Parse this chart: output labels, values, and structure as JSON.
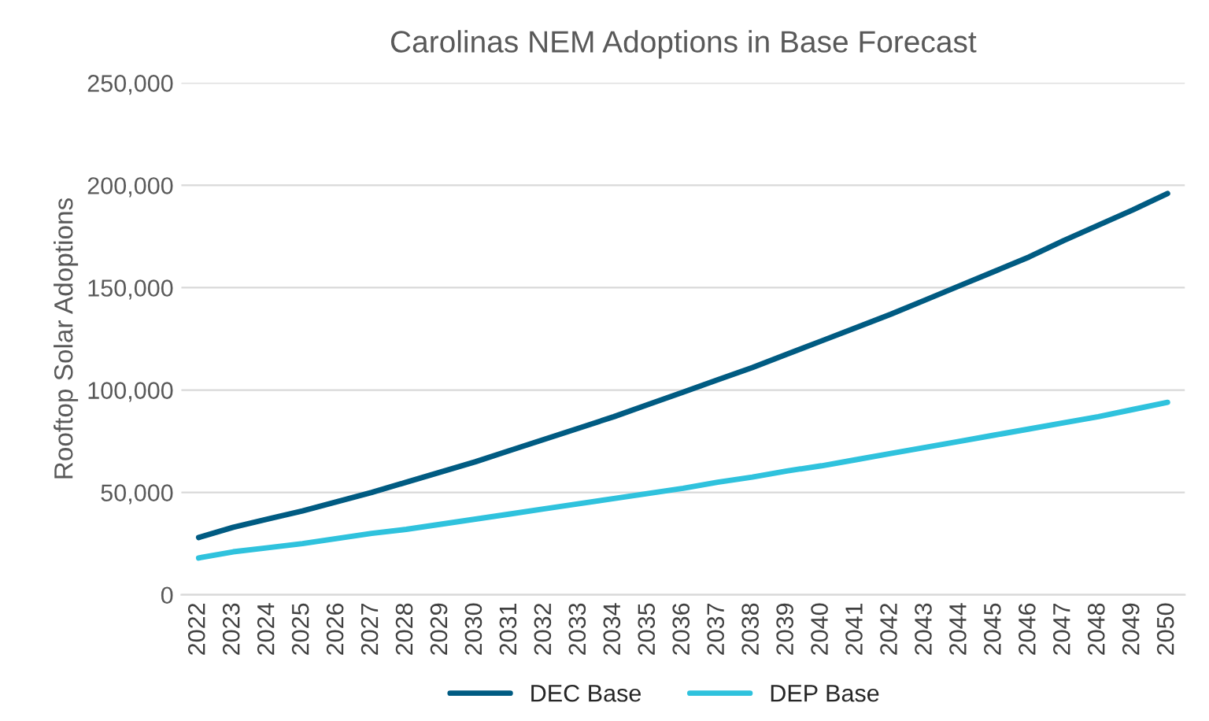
{
  "chart_data": {
    "type": "line",
    "title": "Carolinas NEM Adoptions in Base Forecast",
    "ylabel": "Rooftop Solar Adoptions",
    "categories": [
      "2022",
      "2023",
      "2024",
      "2025",
      "2026",
      "2027",
      "2028",
      "2029",
      "2030",
      "2031",
      "2032",
      "2033",
      "2034",
      "2035",
      "2036",
      "2037",
      "2038",
      "2039",
      "2040",
      "2041",
      "2042",
      "2043",
      "2044",
      "2045",
      "2046",
      "2047",
      "2048",
      "2049",
      "2050"
    ],
    "series": [
      {
        "name": "DEC Base",
        "color": "#005b82",
        "values": [
          28000,
          33000,
          37000,
          41000,
          45500,
          50000,
          55000,
          60000,
          65000,
          70500,
          76000,
          81500,
          87000,
          93000,
          99000,
          105000,
          111000,
          117500,
          124000,
          130500,
          137000,
          144000,
          151000,
          158000,
          165000,
          173000,
          180500,
          188000,
          196000
        ]
      },
      {
        "name": "DEP Base",
        "color": "#2fc2dd",
        "values": [
          18000,
          21000,
          23000,
          25000,
          27500,
          30000,
          32000,
          34500,
          37000,
          39500,
          42000,
          44500,
          47000,
          49500,
          52000,
          55000,
          57500,
          60500,
          63000,
          66000,
          69000,
          72000,
          75000,
          78000,
          81000,
          84000,
          87000,
          90500,
          94000
        ]
      }
    ],
    "ylim": [
      0,
      250000
    ],
    "yticks": [
      {
        "value": 0,
        "label": "0"
      },
      {
        "value": 50000,
        "label": "50,000"
      },
      {
        "value": 100000,
        "label": "100,000"
      },
      {
        "value": 150000,
        "label": "150,000"
      },
      {
        "value": 200000,
        "label": "200,000"
      },
      {
        "value": 250000,
        "label": "250,000"
      }
    ],
    "grid": "y",
    "legend": "bottom",
    "marker": "none",
    "line_style": "solid"
  }
}
